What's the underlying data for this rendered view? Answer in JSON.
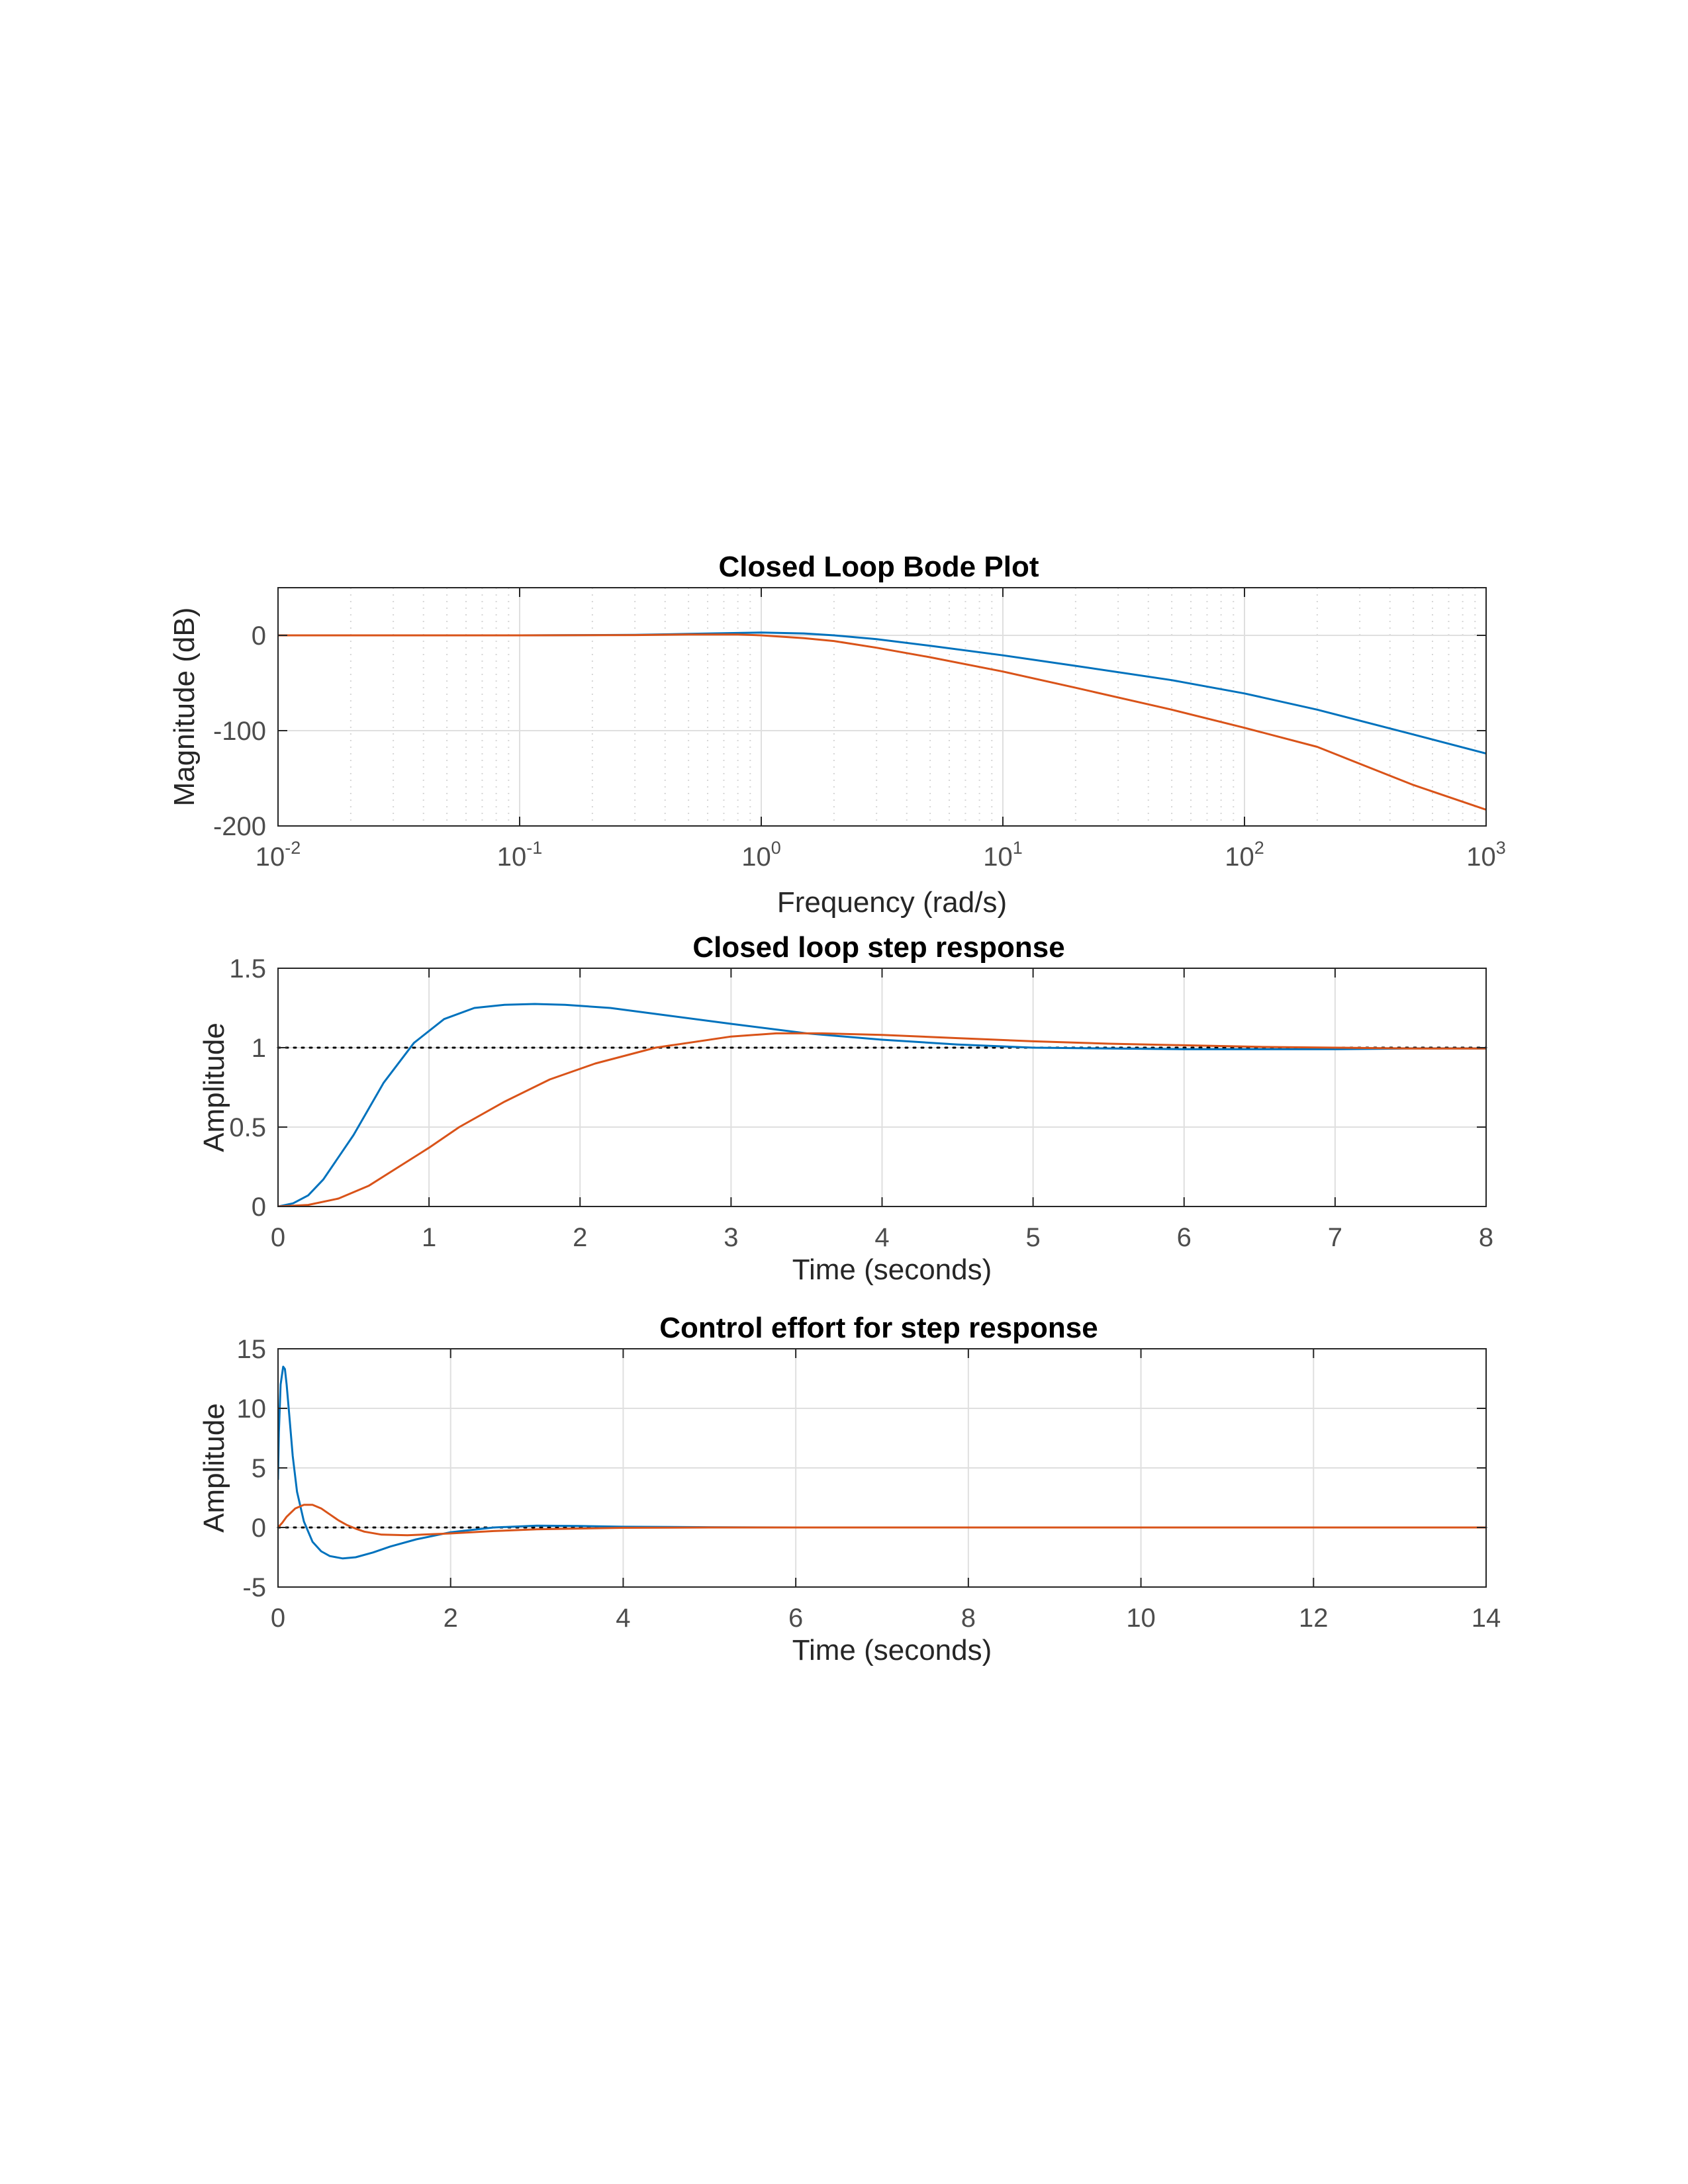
{
  "chart_data": [
    {
      "type": "line",
      "title": "Closed Loop Bode Plot",
      "xlabel": "Frequency  (rad/s)",
      "ylabel": "Magnitude (dB)",
      "xscale": "log",
      "xlim": [
        0.01,
        1000
      ],
      "ylim": [
        -200,
        50
      ],
      "xtick_labels": [
        {
          "base": "10",
          "exp": "-2"
        },
        {
          "base": "10",
          "exp": "-1"
        },
        {
          "base": "10",
          "exp": "0"
        },
        {
          "base": "10",
          "exp": "1"
        },
        {
          "base": "10",
          "exp": "2"
        },
        {
          "base": "10",
          "exp": "3"
        }
      ],
      "xticks": [
        0.01,
        0.1,
        1,
        10,
        100,
        1000
      ],
      "yticks": [
        -200,
        -100,
        0
      ],
      "ytick_labels": [
        "-200",
        "-100",
        "0"
      ],
      "grid": true,
      "minor_grid": true,
      "series": [
        {
          "color": "#0072BD",
          "x": [
            0.01,
            0.1,
            0.3,
            0.5,
            0.8,
            1,
            1.5,
            2,
            3,
            5,
            10,
            20,
            50,
            100,
            200,
            500,
            1000
          ],
          "y": [
            0,
            0,
            0.5,
            1.5,
            2.5,
            3,
            2,
            0,
            -4,
            -11,
            -21,
            -32,
            -47,
            -61,
            -78,
            -104,
            -124
          ]
        },
        {
          "color": "#D95319",
          "x": [
            0.01,
            0.1,
            0.3,
            0.5,
            0.8,
            1,
            1.5,
            2,
            3,
            5,
            10,
            20,
            50,
            100,
            200,
            500,
            1000
          ],
          "y": [
            0,
            0,
            0.3,
            0.8,
            0.8,
            0,
            -3,
            -6,
            -13,
            -23,
            -38,
            -55,
            -78,
            -97,
            -117,
            -157,
            -183
          ]
        }
      ]
    },
    {
      "type": "line",
      "title": "Closed loop step response",
      "xlabel": "Time (seconds)",
      "ylabel": "Amplitude",
      "xlim": [
        0,
        8
      ],
      "ylim": [
        0,
        1.5
      ],
      "xticks": [
        0,
        1,
        2,
        3,
        4,
        5,
        6,
        7,
        8
      ],
      "xtick_labels": [
        "0",
        "1",
        "2",
        "3",
        "4",
        "5",
        "6",
        "7",
        "8"
      ],
      "yticks": [
        0,
        0.5,
        1,
        1.5
      ],
      "ytick_labels": [
        "0",
        "0.5",
        "1",
        "1.5"
      ],
      "grid": true,
      "reference_line": 1,
      "series": [
        {
          "color": "#0072BD",
          "x": [
            0,
            0.1,
            0.2,
            0.3,
            0.5,
            0.7,
            0.9,
            1.1,
            1.3,
            1.5,
            1.7,
            1.9,
            2.2,
            2.6,
            3,
            3.5,
            4,
            4.5,
            5,
            5.5,
            6,
            6.5,
            7,
            7.5,
            8
          ],
          "y": [
            0,
            0.02,
            0.07,
            0.17,
            0.45,
            0.78,
            1.03,
            1.18,
            1.25,
            1.27,
            1.275,
            1.27,
            1.25,
            1.2,
            1.15,
            1.09,
            1.05,
            1.02,
            1.0,
            0.995,
            0.99,
            0.99,
            0.99,
            0.995,
            0.995
          ]
        },
        {
          "color": "#D95319",
          "x": [
            0,
            0.2,
            0.4,
            0.6,
            0.8,
            1,
            1.2,
            1.5,
            1.8,
            2.1,
            2.5,
            3,
            3.3,
            3.6,
            4,
            4.5,
            5,
            5.5,
            6,
            6.5,
            7,
            7.5,
            8
          ],
          "y": [
            0,
            0.01,
            0.05,
            0.13,
            0.25,
            0.37,
            0.5,
            0.66,
            0.8,
            0.9,
            1.0,
            1.07,
            1.09,
            1.09,
            1.08,
            1.06,
            1.04,
            1.025,
            1.015,
            1.005,
            1.0,
            0.995,
            0.995
          ]
        }
      ]
    },
    {
      "type": "line",
      "title": "Control effort for step response",
      "xlabel": "Time (seconds)",
      "ylabel": "Amplitude",
      "xlim": [
        0,
        14
      ],
      "ylim": [
        -5,
        15
      ],
      "xticks": [
        0,
        2,
        4,
        6,
        8,
        10,
        12,
        14
      ],
      "xtick_labels": [
        "0",
        "2",
        "4",
        "6",
        "8",
        "10",
        "12",
        "14"
      ],
      "yticks": [
        -5,
        0,
        5,
        10,
        15
      ],
      "ytick_labels": [
        "-5",
        "0",
        "5",
        "10",
        "15"
      ],
      "grid": true,
      "reference_line": 0,
      "series": [
        {
          "color": "#0072BD",
          "x": [
            0,
            0.01,
            0.03,
            0.06,
            0.08,
            0.1,
            0.13,
            0.17,
            0.22,
            0.3,
            0.4,
            0.5,
            0.6,
            0.75,
            0.9,
            1.1,
            1.3,
            1.6,
            2,
            2.5,
            3,
            3.5,
            4,
            5,
            6,
            8,
            10,
            14
          ],
          "y": [
            4,
            8,
            12,
            13.5,
            13.3,
            12,
            9.5,
            6,
            3,
            0.5,
            -1.2,
            -2,
            -2.4,
            -2.6,
            -2.5,
            -2.1,
            -1.6,
            -1,
            -0.4,
            0,
            0.15,
            0.12,
            0.06,
            0.02,
            0,
            0,
            0,
            0
          ]
        },
        {
          "color": "#D95319",
          "x": [
            0,
            0.05,
            0.1,
            0.2,
            0.3,
            0.4,
            0.5,
            0.6,
            0.7,
            0.8,
            0.9,
            1.0,
            1.2,
            1.5,
            2,
            2.5,
            3,
            4,
            5,
            6,
            8,
            14
          ],
          "y": [
            0,
            0.4,
            0.9,
            1.6,
            1.9,
            1.9,
            1.6,
            1.1,
            0.6,
            0.2,
            -0.1,
            -0.35,
            -0.6,
            -0.65,
            -0.5,
            -0.3,
            -0.15,
            -0.03,
            0,
            0,
            0,
            0
          ]
        }
      ]
    }
  ]
}
